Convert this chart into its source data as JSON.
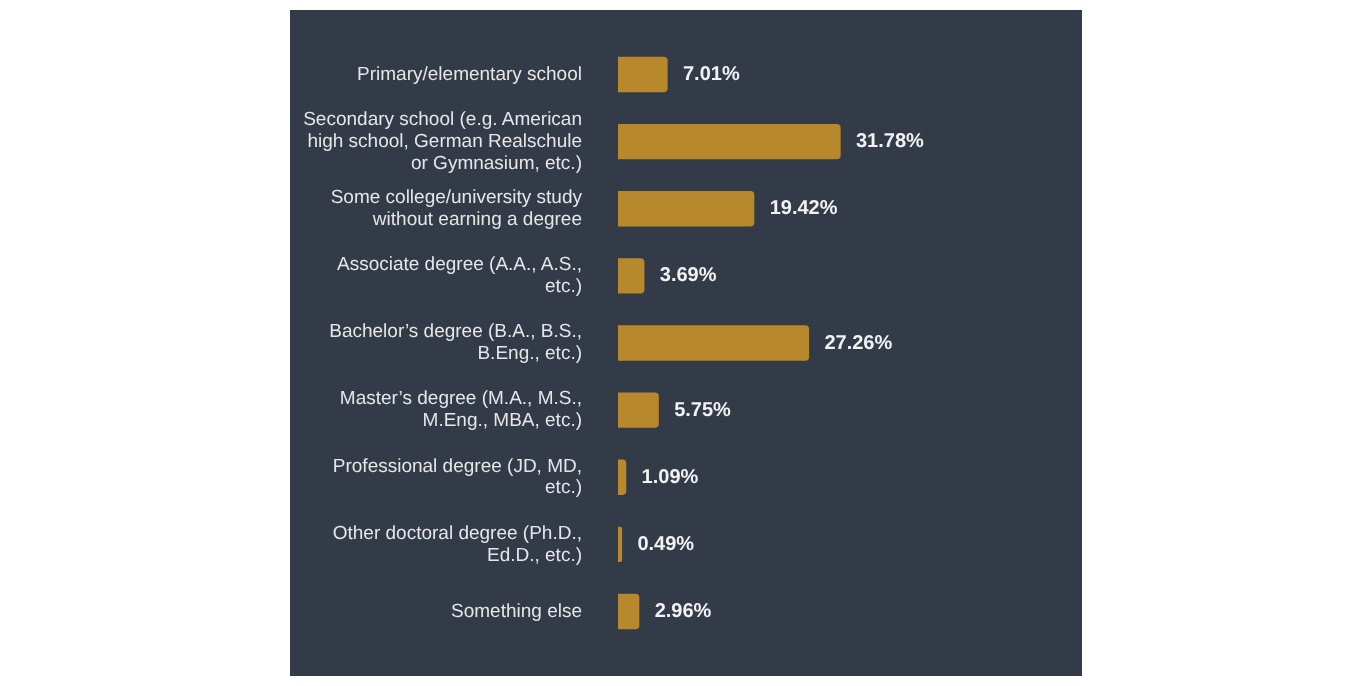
{
  "chart_data": {
    "type": "bar",
    "orientation": "horizontal",
    "categories": [
      "Primary/elementary school",
      "Secondary school (e.g. American high school, German Realschule or Gymnasium, etc.)",
      "Some college/university study without earning a degree",
      "Associate degree (A.A., A.S., etc.)",
      "Bachelor’s degree (B.A., B.S., B.Eng., etc.)",
      "Master’s degree (M.A., M.S., M.Eng., MBA, etc.)",
      "Professional degree (JD, MD, etc.)",
      "Other doctoral degree (Ph.D., Ed.D., etc.)",
      "Something else"
    ],
    "values": [
      7.01,
      31.78,
      19.42,
      3.69,
      27.26,
      5.75,
      1.09,
      0.49,
      2.96
    ],
    "value_labels": [
      "7.01%",
      "31.78%",
      "19.42%",
      "3.69%",
      "27.26%",
      "5.75%",
      "1.09%",
      "0.49%",
      "2.96%"
    ],
    "color": "#b8882c",
    "legend": false
  }
}
